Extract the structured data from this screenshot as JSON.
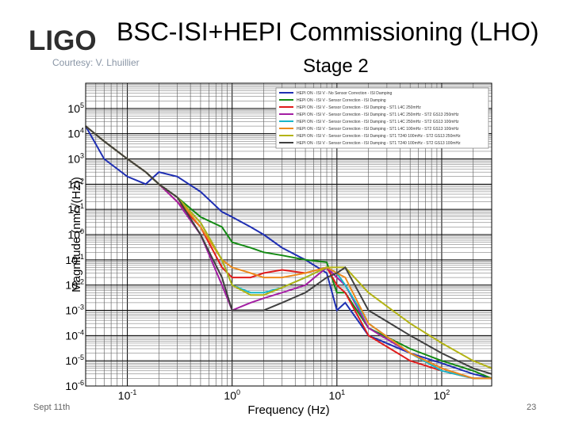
{
  "slide": {
    "logo_text": "LIGO",
    "title": "BSC-ISI+HEPI Commissioning (LHO)",
    "subtitle": "Stage 2",
    "courtesy": "Courtesy: V. Lhuillier",
    "footer_date": "Sept 11th",
    "page_number": "23"
  },
  "chart_data": {
    "type": "line",
    "xlabel": "Frequency (Hz)",
    "ylabel": "Magnitude (nm/√(Hz))",
    "xscale": "log",
    "yscale": "log",
    "xlim": [
      0.04,
      300
    ],
    "ylim": [
      1e-06,
      1000000
    ],
    "grid": true,
    "legend_position": "top-right",
    "x_ticks": [
      {
        "base": "10",
        "exp": "-1"
      },
      {
        "base": "10",
        "exp": "0"
      },
      {
        "base": "10",
        "exp": "1"
      },
      {
        "base": "10",
        "exp": "2"
      }
    ],
    "y_ticks": [
      {
        "base": "10",
        "exp": "5"
      },
      {
        "base": "10",
        "exp": "4"
      },
      {
        "base": "10",
        "exp": "3"
      },
      {
        "base": "10",
        "exp": "2"
      },
      {
        "base": "10",
        "exp": "1"
      },
      {
        "base": "10",
        "exp": "0"
      },
      {
        "base": "10",
        "exp": "-1"
      },
      {
        "base": "10",
        "exp": "-2"
      },
      {
        "base": "10",
        "exp": "-3"
      },
      {
        "base": "10",
        "exp": "-4"
      },
      {
        "base": "10",
        "exp": "-5"
      },
      {
        "base": "10",
        "exp": "-6"
      }
    ],
    "series": [
      {
        "name": "HEPI ON - ISI V - No Sensor Correction - ISI Damping",
        "color": "#1f2fb3",
        "x": [
          0.04,
          0.06,
          0.1,
          0.15,
          0.2,
          0.3,
          0.5,
          0.8,
          1,
          1.5,
          2,
          3,
          5,
          8,
          10,
          12,
          20,
          50,
          100,
          200,
          300
        ],
        "y": [
          20000,
          1000,
          200,
          100,
          300,
          200,
          50,
          8,
          5,
          2,
          1,
          0.3,
          0.1,
          0.03,
          0.001,
          0.002,
          0.0001,
          2e-05,
          8e-06,
          3e-06,
          2e-06
        ]
      },
      {
        "name": "HEPI ON - ISI V - Sensor Correction - ISI Damping",
        "color": "#138a13",
        "x": [
          0.04,
          0.06,
          0.1,
          0.15,
          0.2,
          0.3,
          0.5,
          0.8,
          1,
          1.5,
          2,
          3,
          5,
          8,
          10,
          12,
          20,
          50,
          100,
          200,
          300
        ],
        "y": [
          20000,
          5000,
          1000,
          300,
          100,
          30,
          5,
          2,
          0.5,
          0.3,
          0.2,
          0.15,
          0.1,
          0.08,
          0.005,
          0.005,
          0.0002,
          3e-05,
          1e-05,
          4e-06,
          2e-06
        ]
      },
      {
        "name": "HEPI ON - ISI V - Sensor Correction - ISI Damping - ST1 L4C 250mHz",
        "color": "#e01c1c",
        "x": [
          0.04,
          0.06,
          0.1,
          0.15,
          0.2,
          0.3,
          0.5,
          0.8,
          1,
          1.5,
          2,
          3,
          5,
          8,
          10,
          12,
          20,
          50,
          100,
          200,
          300
        ],
        "y": [
          20000,
          5000,
          1000,
          300,
          100,
          20,
          2,
          0.05,
          0.02,
          0.02,
          0.03,
          0.04,
          0.03,
          0.05,
          0.01,
          0.005,
          0.0001,
          1e-05,
          4e-06,
          2e-06,
          2e-06
        ]
      },
      {
        "name": "HEPI ON - ISI V - Sensor Correction - ISI Damping - ST1 L4C 250mHz - ST2 GS13 250mHz",
        "color": "#a31ea3",
        "x": [
          0.04,
          0.06,
          0.1,
          0.15,
          0.2,
          0.3,
          0.5,
          0.8,
          1,
          1.5,
          2,
          3,
          5,
          8,
          10,
          12,
          20,
          50,
          100,
          200,
          300
        ],
        "y": [
          20000,
          5000,
          1000,
          300,
          100,
          20,
          1,
          0.01,
          0.001,
          0.002,
          0.003,
          0.005,
          0.01,
          0.05,
          0.02,
          0.01,
          0.0002,
          2e-05,
          5e-06,
          2e-06,
          2e-06
        ]
      },
      {
        "name": "HEPI ON - ISI V - Sensor Correction - ISI Damping - ST1 L4C 250mHz - ST2 GS13 100mHz",
        "color": "#19b6c9",
        "x": [
          0.04,
          0.06,
          0.1,
          0.15,
          0.2,
          0.3,
          0.5,
          0.8,
          1,
          1.5,
          2,
          3,
          5,
          8,
          10,
          12,
          20,
          50,
          100,
          200,
          300
        ],
        "y": [
          20000,
          5000,
          1000,
          300,
          100,
          30,
          3,
          0.1,
          0.01,
          0.005,
          0.005,
          0.008,
          0.02,
          0.05,
          0.03,
          0.01,
          0.0003,
          2e-05,
          4e-06,
          2e-06,
          2e-06
        ]
      },
      {
        "name": "HEPI ON - ISI V - Sensor Correction - ISI Damping - ST1 L4C 100mHz - ST2 GS13 100mHz",
        "color": "#ec8a1c",
        "x": [
          0.04,
          0.06,
          0.1,
          0.15,
          0.2,
          0.3,
          0.5,
          0.8,
          1,
          1.5,
          2,
          3,
          5,
          8,
          10,
          12,
          20,
          50,
          100,
          200,
          300
        ],
        "y": [
          20000,
          5000,
          1000,
          300,
          100,
          30,
          2,
          0.1,
          0.05,
          0.03,
          0.02,
          0.02,
          0.03,
          0.05,
          0.03,
          0.02,
          0.0003,
          2e-05,
          5e-06,
          2e-06,
          2e-06
        ]
      },
      {
        "name": "HEPI ON - ISI V - Sensor Correction - ISI Damping - ST1 T240 100mHz - ST2 GS13 250mHz",
        "color": "#b3b314",
        "x": [
          0.04,
          0.06,
          0.1,
          0.15,
          0.2,
          0.3,
          0.5,
          0.8,
          1,
          1.5,
          2,
          3,
          5,
          8,
          10,
          12,
          20,
          50,
          100,
          200,
          300
        ],
        "y": [
          20000,
          5000,
          1000,
          300,
          100,
          30,
          3,
          0.1,
          0.01,
          0.004,
          0.004,
          0.008,
          0.02,
          0.05,
          0.05,
          0.05,
          0.005,
          0.0003,
          5e-05,
          1e-05,
          5e-06
        ]
      },
      {
        "name": "HEPI ON - ISI V - Sensor Correction - ISI Damping - ST1 T240 100mHz - ST2 GS13 100mHz",
        "color": "#404040",
        "x": [
          0.04,
          0.06,
          0.1,
          0.15,
          0.2,
          0.3,
          0.5,
          0.8,
          1,
          1.5,
          2,
          3,
          5,
          8,
          10,
          12,
          20,
          50,
          100,
          200,
          300
        ],
        "y": [
          20000,
          5000,
          1000,
          300,
          100,
          30,
          1,
          0.02,
          0.001,
          0.001,
          0.001,
          0.002,
          0.005,
          0.02,
          0.03,
          0.05,
          0.001,
          0.0001,
          2e-05,
          5e-06,
          3e-06
        ]
      }
    ]
  }
}
